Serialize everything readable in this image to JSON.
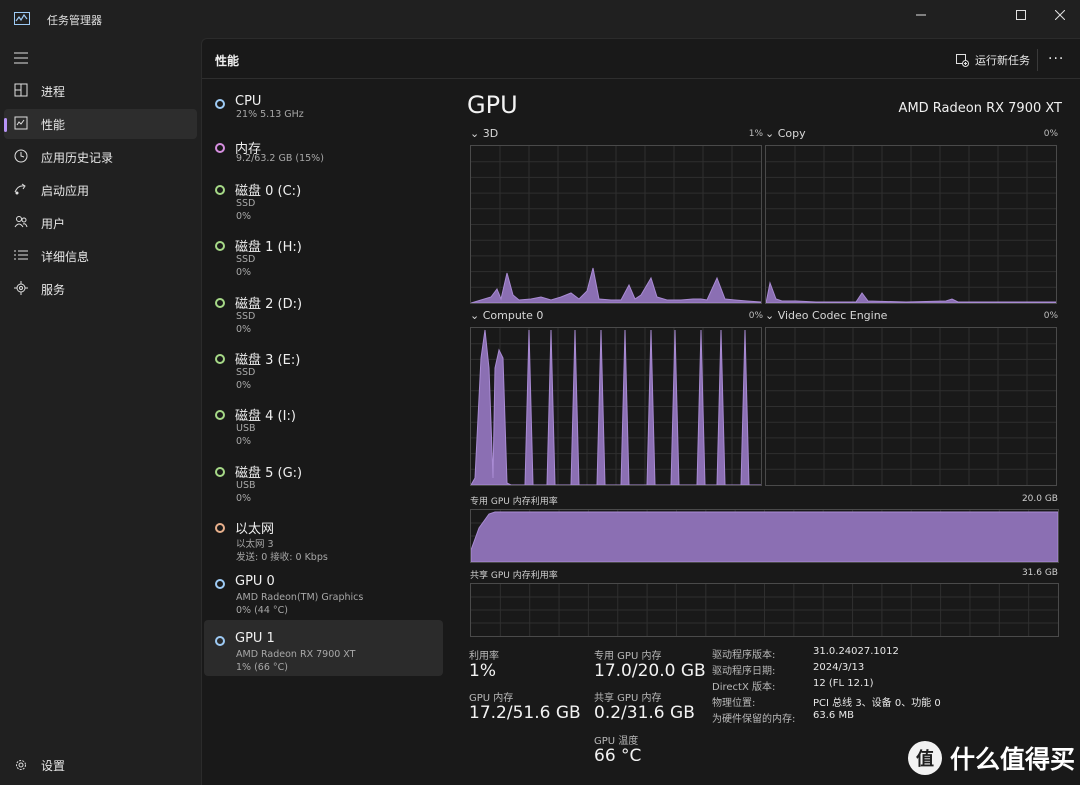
{
  "app": {
    "title": "任务管理器"
  },
  "nav": {
    "items": [
      {
        "label": "进程",
        "icon": "processes-icon"
      },
      {
        "label": "性能",
        "icon": "performance-icon",
        "active": true
      },
      {
        "label": "应用历史记录",
        "icon": "history-icon"
      },
      {
        "label": "启动应用",
        "icon": "startup-icon"
      },
      {
        "label": "用户",
        "icon": "users-icon"
      },
      {
        "label": "详细信息",
        "icon": "details-icon"
      },
      {
        "label": "服务",
        "icon": "services-icon"
      }
    ],
    "settings_label": "设置"
  },
  "header": {
    "title": "性能",
    "run_task_label": "运行新任务",
    "more_label": "···"
  },
  "devices": [
    {
      "name": "CPU",
      "sub1": "21%  5.13 GHz",
      "sub2": "",
      "color": "#9ecbf5"
    },
    {
      "name": "内存",
      "sub1": "9.2/63.2 GB (15%)",
      "sub2": "",
      "color": "#d68fe0"
    },
    {
      "name": "磁盘 0 (C:)",
      "sub1": "SSD",
      "sub2": "0%",
      "color": "#a6d987"
    },
    {
      "name": "磁盘 1 (H:)",
      "sub1": "SSD",
      "sub2": "0%",
      "color": "#a6d987"
    },
    {
      "name": "磁盘 2 (D:)",
      "sub1": "SSD",
      "sub2": "0%",
      "color": "#a6d987"
    },
    {
      "name": "磁盘 3 (E:)",
      "sub1": "SSD",
      "sub2": "0%",
      "color": "#a6d987"
    },
    {
      "name": "磁盘 4 (I:)",
      "sub1": "USB",
      "sub2": "0%",
      "color": "#a6d987"
    },
    {
      "name": "磁盘 5 (G:)",
      "sub1": "USB",
      "sub2": "0%",
      "color": "#a6d987"
    },
    {
      "name": "以太网",
      "sub1": "以太网 3",
      "sub2": "发送: 0 接收: 0 Kbps",
      "color": "#e8b08c"
    },
    {
      "name": "GPU 0",
      "sub1": "AMD Radeon(TM) Graphics",
      "sub2": "0% (44 °C)",
      "color": "#9ecbf5"
    },
    {
      "name": "GPU 1",
      "sub1": "AMD Radeon RX 7900 XT",
      "sub2": "1% (66 °C)",
      "color": "#9ecbf5",
      "active": true
    }
  ],
  "detail": {
    "title": "GPU",
    "model": "AMD Radeon RX 7900 XT",
    "engines": [
      {
        "label": "3D",
        "pct": "1%"
      },
      {
        "label": "Copy",
        "pct": "0%"
      },
      {
        "label": "Compute 0",
        "pct": "0%"
      },
      {
        "label": "Video Codec Engine",
        "pct": "0%"
      }
    ],
    "dedicated_mem_label": "专用 GPU 内存利用率",
    "dedicated_mem_max": "20.0 GB",
    "shared_mem_label": "共享 GPU 内存利用率",
    "shared_mem_max": "31.6 GB",
    "stats": {
      "util_label": "利用率",
      "util_value": "1%",
      "gpu_mem_label": "GPU 内存",
      "gpu_mem_value": "17.2/51.6 GB",
      "ded_label": "专用 GPU 内存",
      "ded_value": "17.0/20.0 GB",
      "shared_label": "共享 GPU 内存",
      "shared_value": "0.2/31.6 GB",
      "temp_label": "GPU 温度",
      "temp_value": "66 °C"
    },
    "info": [
      {
        "k": "驱动程序版本:",
        "v": "31.0.24027.1012"
      },
      {
        "k": "驱动程序日期:",
        "v": "2024/3/13"
      },
      {
        "k": "DirectX 版本:",
        "v": "12 (FL 12.1)"
      },
      {
        "k": "物理位置:",
        "v": "PCI 总线 3、设备 0、功能 0"
      },
      {
        "k": "为硬件保留的内存:",
        "v": "63.6 MB"
      }
    ]
  },
  "colors": {
    "accent": "#b794f6",
    "graph_fill": "#8b6fb3",
    "graph_line": "#a98bd4"
  },
  "watermark": {
    "icon": "值",
    "text": "什么值得买"
  }
}
